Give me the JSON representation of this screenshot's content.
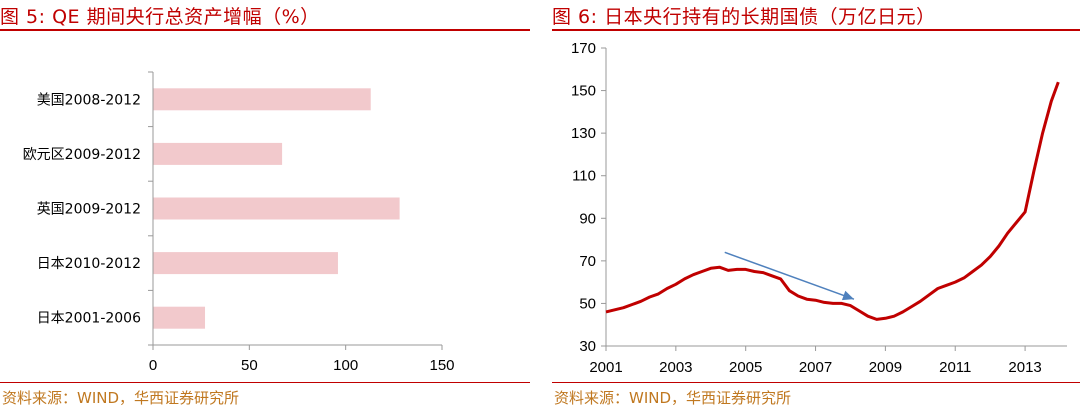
{
  "source_label": "资料来源：WIND，华西证券研究所",
  "left": {
    "title": "图 5:  QE 期间央行总资产增幅（%）"
  },
  "right": {
    "title": "图 6:  日本央行持有的长期国债（万亿日元）"
  },
  "colors": {
    "accent": "#c00000",
    "bar": "#f2c9cc",
    "line": "#c00000",
    "arrow": "#4f81bd",
    "source": "#c07820"
  },
  "chart_data": [
    {
      "type": "bar",
      "orientation": "horizontal",
      "title": "图 5:  QE 期间央行总资产增幅（%）",
      "categories": [
        "美国2008-2012",
        "欧元区2009-2012",
        "英国2009-2012",
        "日本2010-2012",
        "日本2001-2006"
      ],
      "values": [
        113,
        67,
        128,
        96,
        27
      ],
      "xlim": [
        0,
        150
      ],
      "xticks": [
        0,
        50,
        100,
        150
      ],
      "grid": false,
      "legend": "none"
    },
    {
      "type": "line",
      "title": "图 6:  日本央行持有的长期国债（万亿日元）",
      "ylim": [
        30,
        170
      ],
      "yticks": [
        30,
        50,
        70,
        90,
        110,
        130,
        150,
        170
      ],
      "xlim": [
        2001,
        2014.2
      ],
      "xticks": [
        2001,
        2003,
        2005,
        2007,
        2009,
        2011,
        2013
      ],
      "grid": false,
      "legend": "none",
      "annotation": {
        "type": "arrow",
        "from": [
          2004.4,
          74
        ],
        "to": [
          2008.1,
          52
        ]
      },
      "series": [
        {
          "x": [
            2001.0,
            2001.25,
            2001.5,
            2001.75,
            2002.0,
            2002.25,
            2002.5,
            2002.75,
            2003.0,
            2003.25,
            2003.5,
            2003.75,
            2004.0,
            2004.25,
            2004.5,
            2004.75,
            2005.0,
            2005.25,
            2005.5,
            2005.75,
            2006.0,
            2006.25,
            2006.5,
            2006.75,
            2007.0,
            2007.25,
            2007.5,
            2007.75,
            2008.0,
            2008.25,
            2008.5,
            2008.75,
            2009.0,
            2009.25,
            2009.5,
            2009.75,
            2010.0,
            2010.25,
            2010.5,
            2010.75,
            2011.0,
            2011.25,
            2011.5,
            2011.75,
            2012.0,
            2012.25,
            2012.5,
            2012.75,
            2013.0,
            2013.25,
            2013.5,
            2013.75,
            2013.95
          ],
          "y": [
            46,
            47,
            48,
            49.5,
            51,
            53,
            54.5,
            57,
            59,
            61.5,
            63.5,
            65,
            66.5,
            67,
            65.5,
            66,
            66,
            65,
            64.5,
            63,
            61.5,
            56,
            53.5,
            52,
            51.5,
            50.5,
            50,
            50,
            49,
            46.5,
            44,
            42.5,
            43,
            44,
            46,
            48.5,
            51,
            54,
            57,
            58.5,
            60,
            62,
            65,
            68,
            72,
            77,
            83,
            88,
            93,
            112,
            130,
            145,
            154
          ]
        }
      ]
    }
  ]
}
